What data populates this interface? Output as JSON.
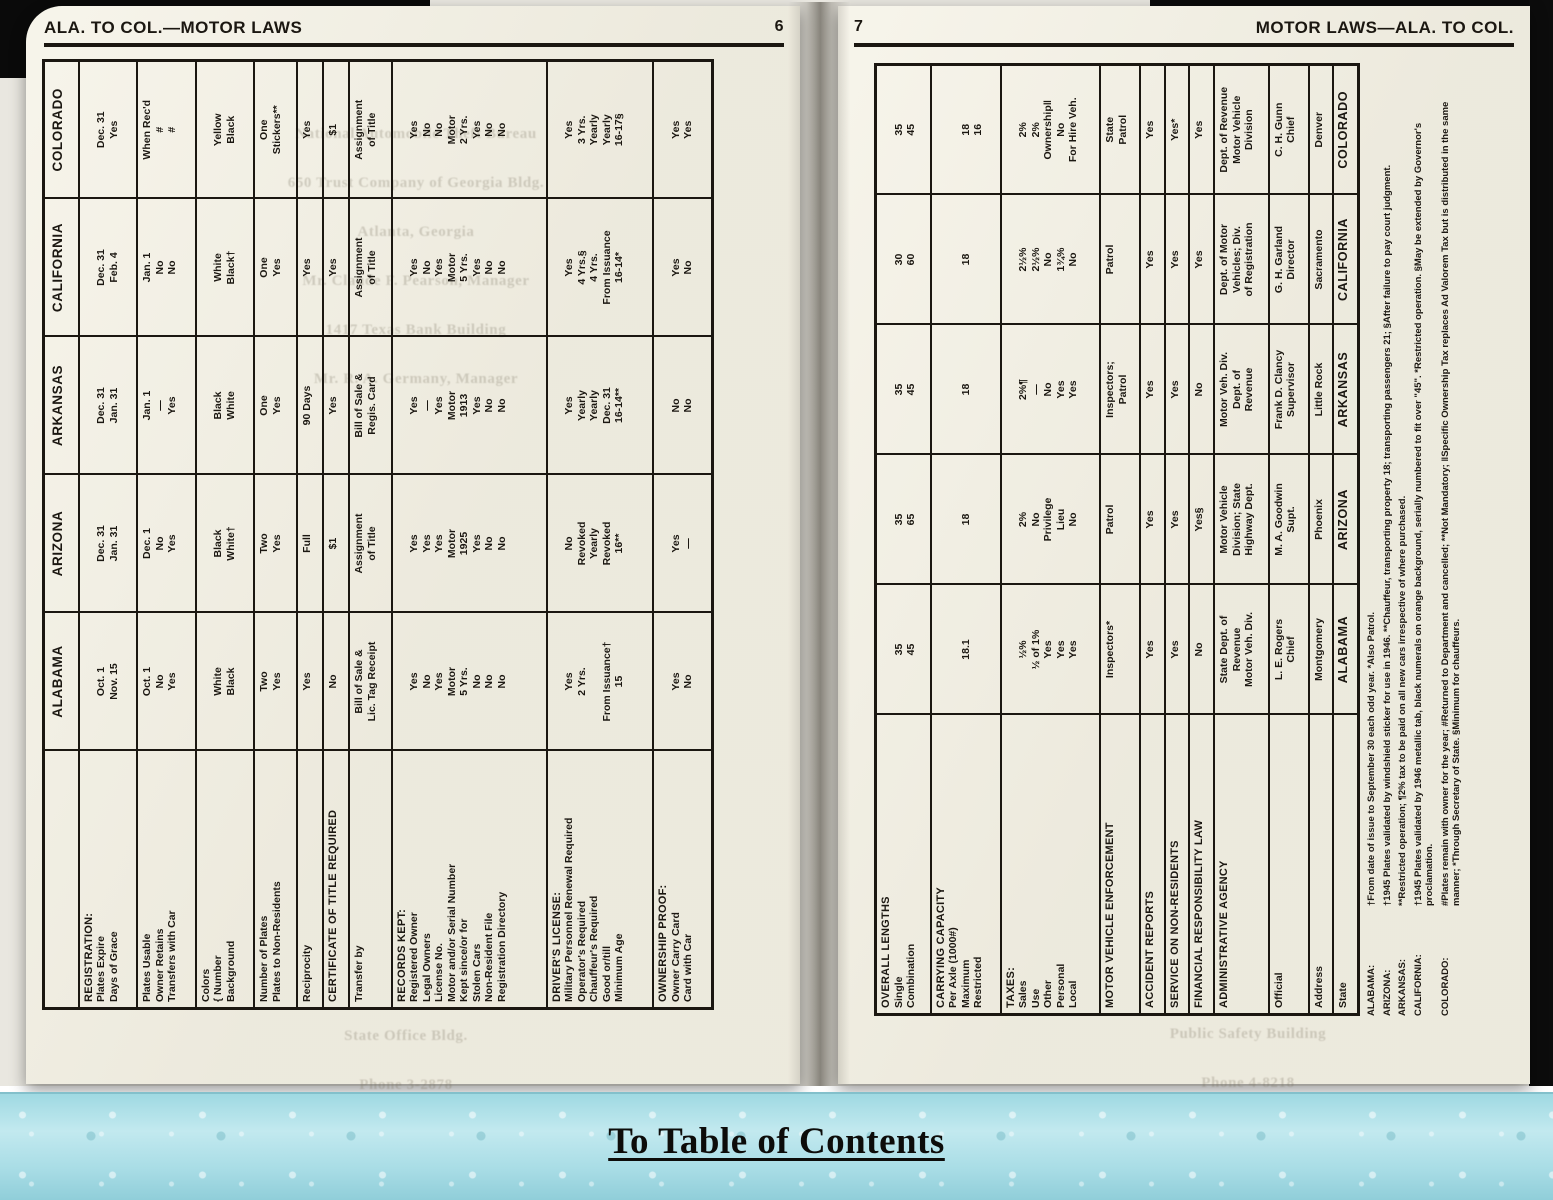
{
  "colors": {
    "paper": "#f4f1e4",
    "ink": "#1b1711",
    "footer_bg": "#aadde6"
  },
  "footer": {
    "link_text": "To Table of Contents"
  },
  "left_page": {
    "header_title": "ALA. TO COL.—MOTOR LAWS",
    "page_number": "6",
    "ghost_lines": [
      "National Automobile Theft Bureau",
      "650 Trust Company of Georgia Bldg.",
      "Atlanta, Georgia",
      "Mr. Claude F. Pearson, Manager",
      "1417 Texas Bank Building",
      "Mr. R. A. Germany, Manager"
    ],
    "ghost_lines_bottom": [
      "State Office Bldg.",
      "Phone 3-2878"
    ],
    "table": {
      "states_header": true,
      "states": [
        "ALABAMA",
        "ARIZONA",
        "ARKANSAS",
        "CALIFORNIA",
        "COLORADO"
      ],
      "groups": [
        {
          "sec": true,
          "labels": [
            "REGISTRATION:",
            "Plates Expire",
            "Days of Grace"
          ],
          "values": [
            [
              "",
              "Oct. 1",
              "Nov. 15"
            ],
            [
              "",
              "Dec. 31",
              "Jan. 31"
            ],
            [
              "",
              "Dec. 31",
              "Jan. 31"
            ],
            [
              "",
              "Dec. 31",
              "Feb. 4"
            ],
            [
              "",
              "Dec. 31",
              "Yes"
            ]
          ]
        },
        {
          "labels": [
            "Plates Usable",
            "Owner Retains",
            "Transfers with Car"
          ],
          "values": [
            [
              "Oct. 1",
              "No",
              "Yes"
            ],
            [
              "Dec. 1",
              "No",
              "Yes"
            ],
            [
              "Jan. 1",
              "—",
              "Yes"
            ],
            [
              "Jan. 1",
              "No",
              "No"
            ],
            [
              "When Rec'd",
              "#",
              "#"
            ]
          ]
        },
        {
          "labels": [
            "Colors",
            "{ Number",
            "   Background"
          ],
          "values": [
            [
              "",
              "White",
              "Black"
            ],
            [
              "",
              "Black",
              "White†"
            ],
            [
              "",
              "Black",
              "White"
            ],
            [
              "",
              "White",
              "Black†"
            ],
            [
              "",
              "Yellow",
              "Black"
            ]
          ]
        },
        {
          "labels": [
            "Number of Plates",
            "Plates to Non-Residents"
          ],
          "values": [
            [
              "Two",
              "Yes"
            ],
            [
              "Two",
              "Yes"
            ],
            [
              "One",
              "Yes"
            ],
            [
              "One",
              "Yes"
            ],
            [
              "One",
              "Stickers**"
            ]
          ]
        },
        {
          "labels": [
            "Reciprocity"
          ],
          "values": [
            [
              "Yes"
            ],
            [
              "Full"
            ],
            [
              "90 Days"
            ],
            [
              "Yes"
            ],
            [
              "Yes"
            ]
          ]
        },
        {
          "sec": true,
          "labels": [
            "CERTIFICATE OF TITLE REQUIRED"
          ],
          "values": [
            [
              "No"
            ],
            [
              "$1"
            ],
            [
              "Yes"
            ],
            [
              "Yes"
            ],
            [
              "$1"
            ]
          ]
        },
        {
          "labels": [
            "Transfer by"
          ],
          "values": [
            [
              "Bill of Sale &",
              "Lic. Tag Receipt"
            ],
            [
              "Assignment",
              "of Title"
            ],
            [
              "Bill of Sale &",
              "Regis. Card"
            ],
            [
              "Assignment",
              "of Title"
            ],
            [
              "Assignment",
              "of Title"
            ]
          ]
        },
        {
          "sec": true,
          "labels": [
            "RECORDS KEPT:",
            "Registered Owner",
            "Legal Owners",
            "License No.",
            "Motor and/or Serial Number",
            "Kept since/or for",
            "Stolen Cars",
            "Non-Resident File",
            "Registration Directory"
          ],
          "values": [
            [
              "",
              "Yes",
              "No",
              "Yes",
              "Motor",
              "5 Yrs.",
              "No",
              "No",
              "No"
            ],
            [
              "",
              "Yes",
              "Yes",
              "Yes",
              "Motor",
              "1925",
              "Yes",
              "No",
              "No"
            ],
            [
              "",
              "Yes",
              "—",
              "Yes",
              "Motor",
              "1913",
              "Yes",
              "No",
              "No"
            ],
            [
              "",
              "Yes",
              "No",
              "Yes",
              "Motor",
              "5 Yrs.",
              "Yes",
              "No",
              "No"
            ],
            [
              "",
              "Yes",
              "No",
              "No",
              "Motor",
              "2 Yrs.",
              "Yes",
              "No",
              "No"
            ]
          ]
        },
        {
          "sec": true,
          "labels": [
            "DRIVER'S LICENSE:",
            "Military Personnel Renewal Required",
            "Operator's Required",
            "Chauffeur's Required",
            "Good or/till",
            "Minimum Age"
          ],
          "values": [
            [
              "",
              "Yes",
              "2 Yrs.",
              "",
              "From Issuance†",
              "15"
            ],
            [
              "",
              "No",
              "Revoked",
              "Yearly",
              "Revoked",
              "16**"
            ],
            [
              "",
              "Yes",
              "Yearly",
              "Yearly",
              "Dec. 31",
              "16-14**"
            ],
            [
              "",
              "Yes",
              "4 Yrs.§",
              "4 Yrs.",
              "From Issuance",
              "16-14*"
            ],
            [
              "",
              "Yes",
              "3 Yrs.",
              "Yearly",
              "Yearly",
              "16-17§"
            ]
          ]
        },
        {
          "sec": true,
          "labels": [
            "OWNERSHIP PROOF:",
            "Owner Carry Card",
            "Card with Car"
          ],
          "values": [
            [
              "",
              "Yes",
              "No"
            ],
            [
              "",
              "Yes",
              "—"
            ],
            [
              "",
              "No",
              "No"
            ],
            [
              "",
              "Yes",
              "No"
            ],
            [
              "",
              "Yes",
              "Yes"
            ]
          ]
        }
      ]
    }
  },
  "right_page": {
    "header_title": "MOTOR LAWS—ALA. TO COL.",
    "page_number": "7",
    "ghost_lines_bottom": [
      "Public Safety Building",
      "Phone 4-8218"
    ],
    "table": {
      "states_header": false,
      "states": [
        "ALABAMA",
        "ARIZONA",
        "ARKANSAS",
        "CALIFORNIA",
        "COLORADO"
      ],
      "groups": [
        {
          "sec": true,
          "labels": [
            "OVERALL LENGTHS",
            "Single",
            "Combination"
          ],
          "values": [
            [
              "",
              "35",
              "45"
            ],
            [
              "",
              "35",
              "65"
            ],
            [
              "",
              "35",
              "45"
            ],
            [
              "",
              "30",
              "60"
            ],
            [
              "",
              "35",
              "45"
            ]
          ]
        },
        {
          "sec": true,
          "labels": [
            "CARRYING CAPACITY",
            "Per Axle (1000#)",
            "Maximum",
            "Restricted"
          ],
          "values": [
            [
              "",
              "",
              "18.1",
              ""
            ],
            [
              "",
              "",
              "18",
              ""
            ],
            [
              "",
              "",
              "18",
              ""
            ],
            [
              "",
              "",
              "18",
              ""
            ],
            [
              "",
              "",
              "18",
              "16"
            ]
          ]
        },
        {
          "sec": true,
          "labels": [
            "TAXES:",
            "Sales",
            "Use",
            "Other",
            "Personal",
            "Local"
          ],
          "values": [
            [
              "",
              "½%",
              "½ of 1%",
              "Yes",
              "Yes",
              "Yes"
            ],
            [
              "",
              "2%",
              "No",
              "Privilege",
              "Lieu",
              "No"
            ],
            [
              "",
              "2%¶",
              "—",
              "No",
              "Yes",
              "Yes"
            ],
            [
              "",
              "2½%",
              "2½%",
              "No",
              "1¾%",
              "No"
            ],
            [
              "",
              "2%",
              "2%",
              "Ownership‖",
              "No",
              "For Hire Veh."
            ]
          ]
        },
        {
          "sec": true,
          "labels": [
            "MOTOR VEHICLE ENFORCEMENT"
          ],
          "values": [
            [
              "Inspectors*"
            ],
            [
              "Patrol"
            ],
            [
              "Inspectors;",
              "Patrol"
            ],
            [
              "Patrol"
            ],
            [
              "State",
              "Patrol"
            ]
          ]
        },
        {
          "sec": true,
          "labels": [
            "ACCIDENT REPORTS"
          ],
          "values": [
            [
              "Yes"
            ],
            [
              "Yes"
            ],
            [
              "Yes"
            ],
            [
              "Yes"
            ],
            [
              "Yes"
            ]
          ]
        },
        {
          "sec": true,
          "labels": [
            "SERVICE ON NON-RESIDENTS"
          ],
          "values": [
            [
              "Yes"
            ],
            [
              "Yes"
            ],
            [
              "Yes"
            ],
            [
              "Yes"
            ],
            [
              "Yes*"
            ]
          ]
        },
        {
          "sec": true,
          "labels": [
            "FINANCIAL RESPONSIBILITY LAW"
          ],
          "values": [
            [
              "No"
            ],
            [
              "Yes§"
            ],
            [
              "No"
            ],
            [
              "Yes"
            ],
            [
              "Yes"
            ]
          ]
        },
        {
          "sec": true,
          "labels": [
            "ADMINISTRATIVE AGENCY"
          ],
          "values": [
            [
              "State Dept. of",
              "Revenue",
              "Motor Veh. Div."
            ],
            [
              "Motor Vehicle",
              "Division; State",
              "Highway Dept."
            ],
            [
              "Motor Veh. Div.",
              "Dept. of",
              "Revenue"
            ],
            [
              "Dept. of Motor",
              "Vehicles; Div.",
              "of Registration"
            ],
            [
              "Dept. of Revenue",
              "Motor Vehicle",
              "Division"
            ]
          ]
        },
        {
          "labels": [
            "Official"
          ],
          "values": [
            [
              "L. E. Rogers",
              "Chief"
            ],
            [
              "M. A. Goodwin",
              "Supt."
            ],
            [
              "Frank D. Clancy",
              "Supervisor"
            ],
            [
              "G. H. Garland",
              "Director"
            ],
            [
              "C. H. Gunn",
              "Chief"
            ]
          ]
        },
        {
          "labels": [
            "Address"
          ],
          "values": [
            [
              "Montgomery"
            ],
            [
              "Phoenix"
            ],
            [
              "Little Rock"
            ],
            [
              "Sacramento"
            ],
            [
              "Denver"
            ]
          ]
        },
        {
          "labels": [
            "State"
          ],
          "strong": true,
          "values": [
            [
              "ALABAMA"
            ],
            [
              "ARIZONA"
            ],
            [
              "ARKANSAS"
            ],
            [
              "CALIFORNIA"
            ],
            [
              "COLORADO"
            ]
          ]
        }
      ]
    },
    "footnotes": [
      {
        "label": "ALABAMA:",
        "text": "†From date of issue to September 30 each odd year. *Also Patrol."
      },
      {
        "label": "ARIZONA:",
        "text": "†1945 Plates validated by windshield sticker for use in 1946. **Chauffeur, transporting property 18; transporting passengers 21; §After failure to pay court judgment."
      },
      {
        "label": "ARKANSAS:",
        "text": "**Restricted operation; ¶2% tax to be paid on all new cars irrespective of where purchased."
      },
      {
        "label": "CALIFORNIA:",
        "text": "†1945 Plates validated by 1946 metallic tab, black numerals on orange background, serially numbered to fit over \"45\". *Restricted operation. §May be extended by Governor's proclamation."
      },
      {
        "label": "COLORADO:",
        "text": "#Plates remain with owner for the year; #Returned to Department and cancelled; **Not Mandatory; ‖Specific Ownership Tax replaces Ad Valorem Tax but is distributed in the same manner; *Through Secretary of State. §Minimum for chauffeurs."
      }
    ]
  }
}
